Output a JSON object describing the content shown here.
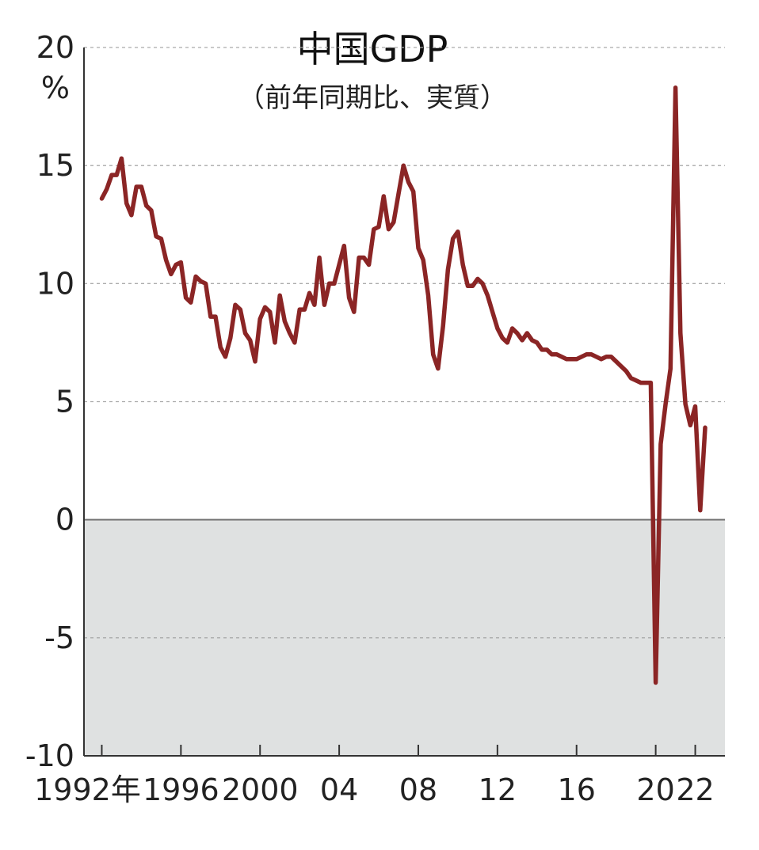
{
  "chart_data": {
    "type": "line",
    "title": "中国GDP",
    "subtitle": "（前年同期比、実質）",
    "y_unit": "%",
    "x": [
      1992,
      1992.25,
      1992.5,
      1992.75,
      1993,
      1993.25,
      1993.5,
      1993.75,
      1994,
      1994.25,
      1994.5,
      1994.75,
      1995,
      1995.25,
      1995.5,
      1995.75,
      1996,
      1996.25,
      1996.5,
      1996.75,
      1997,
      1997.25,
      1997.5,
      1997.75,
      1998,
      1998.25,
      1998.5,
      1998.75,
      1999,
      1999.25,
      1999.5,
      1999.75,
      2000,
      2000.25,
      2000.5,
      2000.75,
      2001,
      2001.25,
      2001.5,
      2001.75,
      2002,
      2002.25,
      2002.5,
      2002.75,
      2003,
      2003.25,
      2003.5,
      2003.75,
      2004,
      2004.25,
      2004.5,
      2004.75,
      2005,
      2005.25,
      2005.5,
      2005.75,
      2006,
      2006.25,
      2006.5,
      2006.75,
      2007,
      2007.25,
      2007.5,
      2007.75,
      2008,
      2008.25,
      2008.5,
      2008.75,
      2009,
      2009.25,
      2009.5,
      2009.75,
      2010,
      2010.25,
      2010.5,
      2010.75,
      2011,
      2011.25,
      2011.5,
      2011.75,
      2012,
      2012.25,
      2012.5,
      2012.75,
      2013,
      2013.25,
      2013.5,
      2013.75,
      2014,
      2014.25,
      2014.5,
      2014.75,
      2015,
      2015.25,
      2015.5,
      2015.75,
      2016,
      2016.25,
      2016.5,
      2016.75,
      2017,
      2017.25,
      2017.5,
      2017.75,
      2018,
      2018.25,
      2018.5,
      2018.75,
      2019,
      2019.25,
      2019.5,
      2019.75,
      2020,
      2020.25,
      2020.5,
      2020.75,
      2021,
      2021.25,
      2021.5,
      2021.75,
      2022,
      2022.25,
      2022.5
    ],
    "series": [
      {
        "color": "#8b2525",
        "values": [
          13.6,
          14.0,
          14.6,
          14.6,
          15.3,
          13.4,
          12.9,
          14.1,
          14.1,
          13.3,
          13.1,
          12.0,
          11.9,
          11.0,
          10.4,
          10.8,
          10.9,
          9.4,
          9.2,
          10.3,
          10.1,
          10.0,
          8.6,
          8.6,
          7.3,
          6.9,
          7.7,
          9.1,
          8.9,
          7.9,
          7.6,
          6.7,
          8.5,
          9.0,
          8.8,
          7.5,
          9.5,
          8.4,
          7.9,
          7.5,
          8.9,
          8.9,
          9.6,
          9.1,
          11.1,
          9.1,
          10.0,
          10.0,
          10.8,
          11.6,
          9.4,
          8.8,
          11.1,
          11.1,
          10.8,
          12.3,
          12.4,
          13.7,
          12.3,
          12.6,
          13.8,
          15.0,
          14.3,
          13.9,
          11.5,
          11.0,
          9.5,
          7.0,
          6.4,
          8.2,
          10.6,
          11.9,
          12.2,
          10.8,
          9.9,
          9.9,
          10.2,
          10.0,
          9.5,
          8.8,
          8.1,
          7.7,
          7.5,
          8.1,
          7.9,
          7.6,
          7.9,
          7.6,
          7.5,
          7.2,
          7.2,
          7.0,
          7.0,
          6.9,
          6.8,
          6.8,
          6.8,
          6.9,
          7.0,
          7.0,
          6.9,
          6.8,
          6.9,
          6.9,
          6.7,
          6.5,
          6.3,
          6.0,
          5.9,
          5.8,
          5.8,
          5.8,
          -6.9,
          3.2,
          4.9,
          6.4,
          18.3,
          7.9,
          4.9,
          4.0,
          4.8,
          0.4,
          3.9
        ]
      }
    ],
    "xlim": [
      1991.1,
      2023.5
    ],
    "xticks": [
      {
        "value": 1992,
        "label": "1992年"
      },
      1996,
      2000,
      {
        "value": 2004,
        "label": "04"
      },
      {
        "value": 2008,
        "label": "08"
      },
      {
        "value": 2012,
        "label": "12"
      },
      {
        "value": 2016,
        "label": "16"
      },
      {
        "value": 2020,
        "label": "20"
      },
      {
        "value": 2022,
        "label": "22"
      }
    ],
    "ylim": [
      -10,
      20
    ],
    "yticks": [
      -10,
      -5,
      0,
      5,
      10,
      15,
      20
    ],
    "grid": true,
    "negative_shade": "#dfe1e1"
  }
}
